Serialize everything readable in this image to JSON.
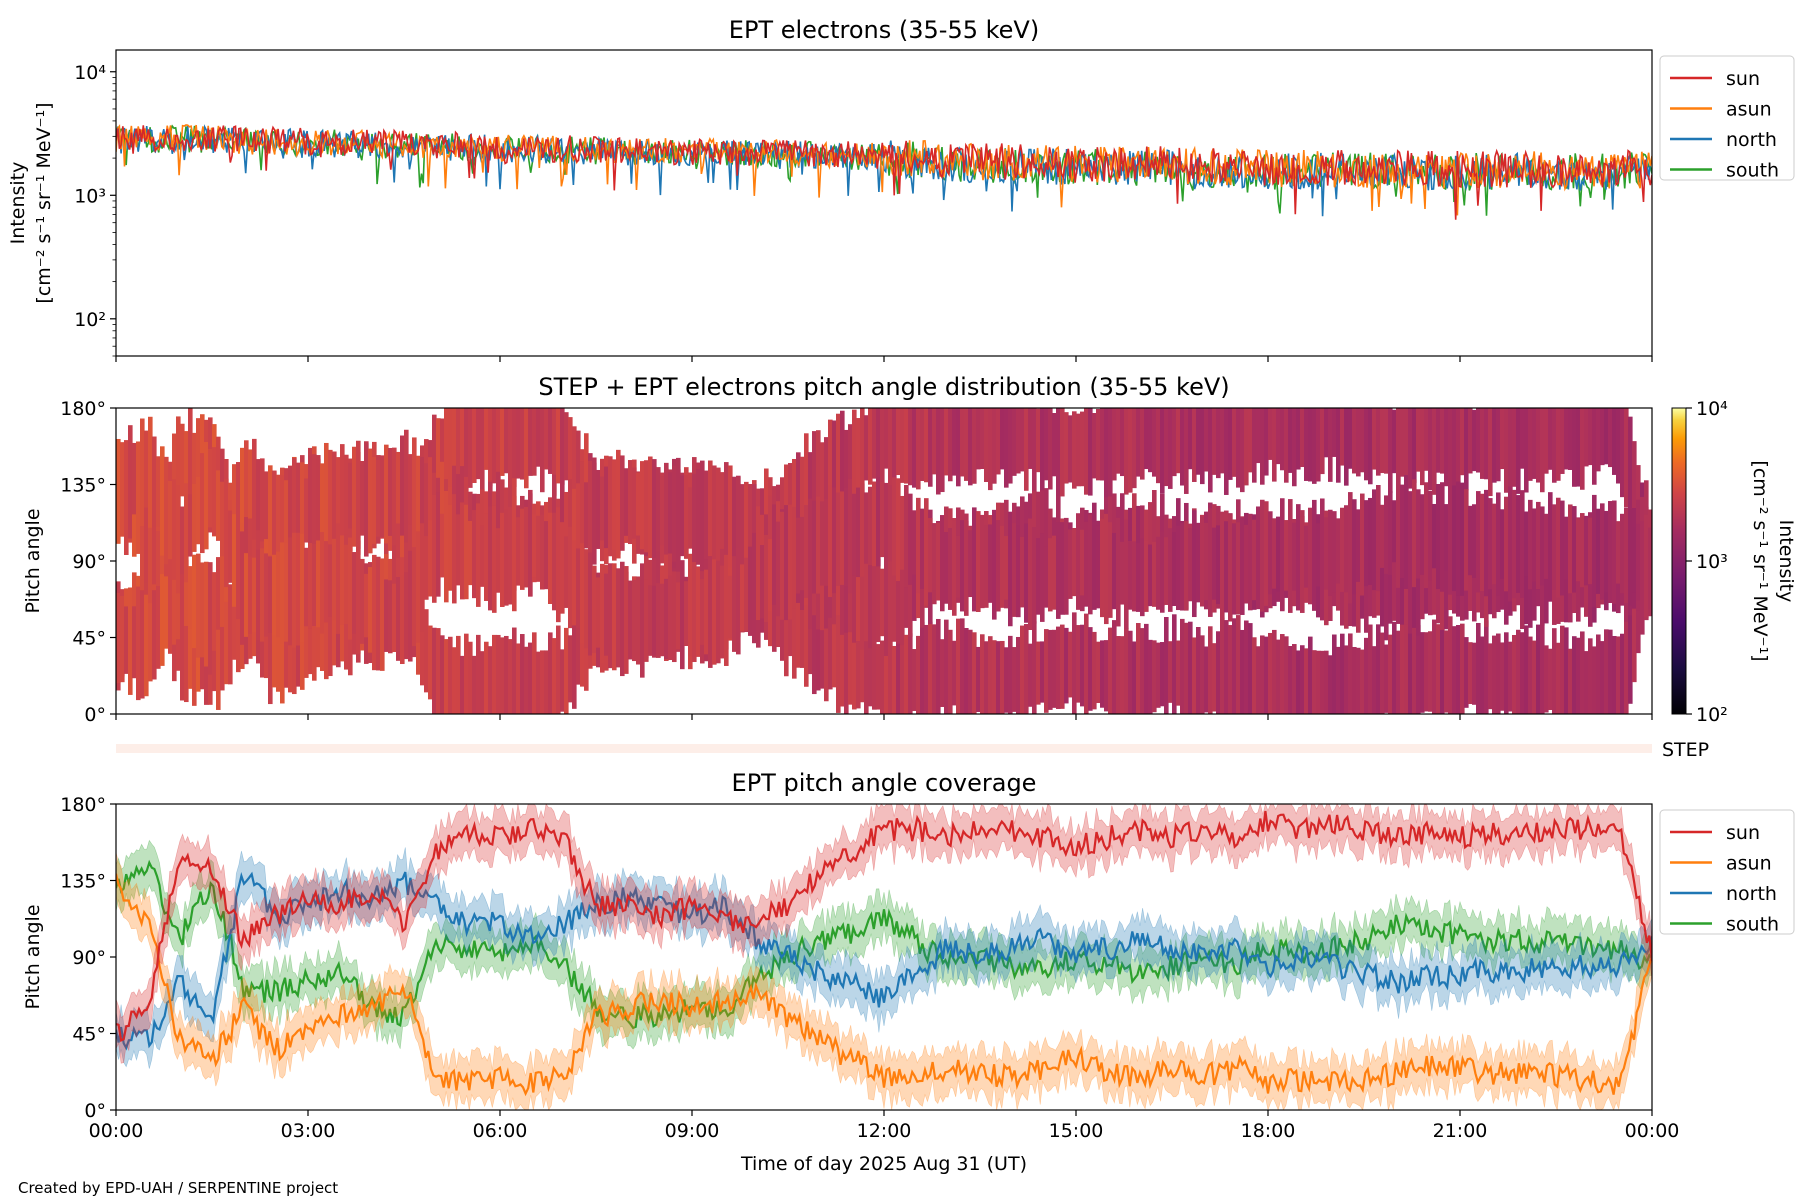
{
  "figure": {
    "credit": "Created by EPD-UAH / SERPENTINE project",
    "xlabel": "Time of day 2025 Aug 31 (UT)",
    "x_tick_labels": [
      "00:00",
      "03:00",
      "06:00",
      "09:00",
      "12:00",
      "15:00",
      "18:00",
      "21:00",
      "00:00"
    ]
  },
  "colors": {
    "sun": "#d62728",
    "asun": "#ff7f0e",
    "north": "#1f77b4",
    "south": "#2ca02c"
  },
  "legend": [
    "sun",
    "asun",
    "north",
    "south"
  ],
  "chart_data": [
    {
      "id": "intensity",
      "type": "line",
      "title": "EPT electrons (35-55 keV)",
      "ylabel_line1": "Intensity",
      "ylabel_line2": "[cm⁻² s⁻¹ sr⁻¹ MeV⁻¹]",
      "yscale": "log",
      "ylim": [
        50,
        15000
      ],
      "xlim_hours": [
        0,
        24
      ],
      "y_ticks": [
        {
          "value": 100,
          "label": "10²"
        },
        {
          "value": 1000,
          "label": "10³"
        },
        {
          "value": 10000,
          "label": "10⁴"
        }
      ],
      "x": [
        0,
        1,
        2,
        3,
        4,
        5,
        6,
        7,
        8,
        9,
        10,
        11,
        12,
        13,
        14,
        15,
        16,
        17,
        18,
        19,
        20,
        21,
        22,
        23,
        24
      ],
      "series": [
        {
          "name": "sun",
          "values": [
            2900,
            2950,
            2850,
            2750,
            2650,
            2550,
            2450,
            2380,
            2300,
            2250,
            2220,
            2180,
            2100,
            1950,
            1850,
            1800,
            1780,
            1740,
            1680,
            1660,
            1640,
            1620,
            1620,
            1600,
            1650
          ]
        },
        {
          "name": "asun",
          "values": [
            2850,
            2900,
            2800,
            2700,
            2600,
            2500,
            2420,
            2350,
            2280,
            2230,
            2200,
            2150,
            2050,
            1900,
            1820,
            1780,
            1750,
            1700,
            1650,
            1640,
            1620,
            1600,
            1610,
            1580,
            1620
          ]
        },
        {
          "name": "north",
          "values": [
            2800,
            2850,
            2780,
            2650,
            2550,
            2480,
            2380,
            2300,
            2250,
            2200,
            2170,
            2120,
            2000,
            1800,
            1720,
            1700,
            1680,
            1620,
            1580,
            1560,
            1550,
            1540,
            1560,
            1540,
            1600
          ]
        },
        {
          "name": "south",
          "values": [
            2820,
            2880,
            2790,
            2680,
            2580,
            2490,
            2400,
            2320,
            2260,
            2210,
            2180,
            2130,
            2020,
            1820,
            1740,
            1710,
            1690,
            1640,
            1600,
            1580,
            1560,
            1550,
            1570,
            1560,
            1610
          ]
        }
      ]
    },
    {
      "id": "pad",
      "type": "heatmap",
      "title": "STEP + EPT electrons pitch angle distribution (35-55 keV)",
      "ylabel": "Pitch angle",
      "ylim": [
        0,
        180
      ],
      "xlim_hours": [
        0,
        24
      ],
      "y_ticks": [
        {
          "value": 0,
          "label": "0°"
        },
        {
          "value": 45,
          "label": "45°"
        },
        {
          "value": 90,
          "label": "90°"
        },
        {
          "value": 135,
          "label": "135°"
        },
        {
          "value": 180,
          "label": "180°"
        }
      ],
      "colorbar": {
        "scale": "log",
        "range": [
          100,
          10000
        ],
        "label_line1": "Intensity",
        "label_line2": "[cm⁻² s⁻¹ sr⁻¹ MeV⁻¹]",
        "ticks": [
          {
            "value": 100,
            "label": "10²"
          },
          {
            "value": 1000,
            "label": "10³"
          },
          {
            "value": 10000,
            "label": "10⁴"
          }
        ]
      },
      "hourly_intensity": [
        2900,
        2950,
        2850,
        2750,
        2650,
        2550,
        2450,
        2380,
        2300,
        2250,
        2220,
        2180,
        2100,
        1950,
        1850,
        1800,
        1780,
        1740,
        1680,
        1660,
        1640,
        1620,
        1620,
        1600,
        1650
      ],
      "step_label": "STEP"
    },
    {
      "id": "coverage",
      "type": "line",
      "title": "EPT pitch angle coverage",
      "ylabel": "Pitch angle",
      "ylim": [
        0,
        180
      ],
      "xlim_hours": [
        0,
        24
      ],
      "y_ticks": [
        {
          "value": 0,
          "label": "0°"
        },
        {
          "value": 45,
          "label": "45°"
        },
        {
          "value": 90,
          "label": "90°"
        },
        {
          "value": 135,
          "label": "135°"
        },
        {
          "value": 180,
          "label": "180°"
        }
      ],
      "x": [
        0,
        0.5,
        1,
        1.5,
        2,
        2.5,
        3,
        3.5,
        4,
        4.5,
        5,
        5.5,
        6,
        6.5,
        7,
        7.5,
        8,
        8.5,
        9,
        9.5,
        10,
        10.5,
        11,
        11.5,
        12,
        12.5,
        13,
        13.5,
        14,
        14.5,
        15,
        15.5,
        16,
        16.5,
        17,
        17.5,
        18,
        18.5,
        19,
        19.5,
        20,
        20.5,
        21,
        21.5,
        22,
        22.5,
        23,
        23.5,
        24
      ],
      "series": [
        {
          "name": "sun",
          "values": [
            45,
            60,
            150,
            140,
            100,
            115,
            125,
            120,
            130,
            110,
            150,
            165,
            160,
            165,
            160,
            120,
            120,
            115,
            120,
            110,
            110,
            120,
            140,
            150,
            165,
            165,
            160,
            165,
            165,
            160,
            155,
            160,
            165,
            160,
            165,
            160,
            170,
            165,
            170,
            165,
            160,
            162,
            160,
            162,
            163,
            165,
            165,
            165,
            90
          ]
        },
        {
          "name": "asun",
          "values": [
            135,
            110,
            40,
            30,
            60,
            35,
            50,
            55,
            60,
            75,
            20,
            15,
            20,
            15,
            20,
            55,
            60,
            65,
            60,
            65,
            70,
            55,
            40,
            30,
            20,
            20,
            25,
            20,
            20,
            25,
            30,
            22,
            20,
            25,
            20,
            25,
            15,
            18,
            15,
            18,
            22,
            25,
            25,
            22,
            22,
            20,
            18,
            15,
            90
          ]
        },
        {
          "name": "north",
          "values": [
            45,
            40,
            75,
            55,
            140,
            115,
            120,
            130,
            125,
            135,
            120,
            110,
            110,
            100,
            110,
            120,
            125,
            120,
            115,
            120,
            100,
            90,
            80,
            75,
            65,
            80,
            95,
            90,
            95,
            100,
            90,
            95,
            100,
            95,
            90,
            95,
            85,
            90,
            85,
            80,
            75,
            78,
            80,
            82,
            82,
            85,
            85,
            85,
            100
          ]
        },
        {
          "name": "south",
          "values": [
            130,
            145,
            100,
            135,
            70,
            70,
            75,
            80,
            60,
            55,
            100,
            95,
            90,
            100,
            85,
            60,
            55,
            55,
            60,
            60,
            75,
            90,
            100,
            105,
            115,
            100,
            85,
            90,
            85,
            80,
            90,
            85,
            80,
            85,
            90,
            85,
            95,
            92,
            95,
            100,
            108,
            105,
            103,
            100,
            100,
            98,
            96,
            95,
            85
          ]
        }
      ]
    }
  ]
}
